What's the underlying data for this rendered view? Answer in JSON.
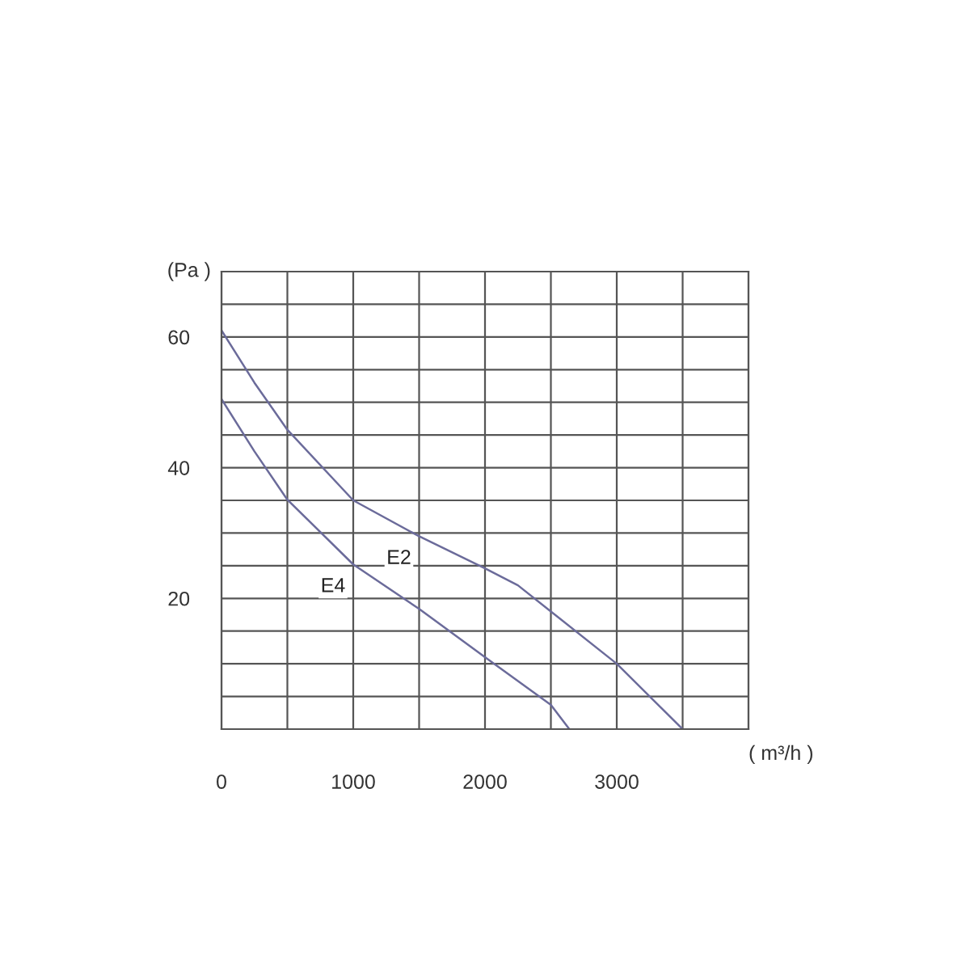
{
  "chart_data": {
    "type": "line",
    "xlabel": "( m³/h )",
    "ylabel": "(Pa )",
    "xlim": [
      0,
      4000
    ],
    "ylim": [
      0,
      70
    ],
    "xticks": [
      {
        "value": 0,
        "label": "0"
      },
      {
        "value": 500,
        "label": null
      },
      1000,
      {
        "value": 1500,
        "label": null
      },
      2000,
      {
        "value": 2500,
        "label": null
      },
      3000,
      {
        "value": 3500,
        "label": null
      },
      {
        "value": 4000,
        "label": null
      }
    ],
    "yticks": [
      {
        "value": 0,
        "label": null
      },
      {
        "value": 5,
        "label": null
      },
      {
        "value": 10,
        "label": null
      },
      {
        "value": 15,
        "label": null
      },
      20,
      {
        "value": 25,
        "label": null
      },
      {
        "value": 30,
        "label": null
      },
      {
        "value": 35,
        "label": null
      },
      40,
      {
        "value": 45,
        "label": null
      },
      {
        "value": 50,
        "label": null
      },
      {
        "value": 55,
        "label": null
      },
      60,
      {
        "value": 65,
        "label": null
      },
      {
        "value": 70,
        "label": null
      }
    ],
    "grid": true,
    "marker": "none",
    "line_style": "solid",
    "series": [
      {
        "name": "E2",
        "color": "#6b6b9a",
        "x": [
          0,
          250,
          500,
          1000,
          1500,
          2000,
          2250,
          2500,
          3000,
          3250,
          3500
        ],
        "values": [
          61,
          53,
          45.8,
          35,
          29.5,
          24.6,
          22,
          18,
          10,
          5,
          0
        ]
      },
      {
        "name": "E4",
        "color": "#6b6b9a",
        "x": [
          0,
          250,
          500,
          1000,
          1500,
          2000,
          2500,
          2640
        ],
        "values": [
          50.5,
          42.5,
          35.1,
          25.2,
          18.4,
          11,
          3.7,
          0
        ]
      }
    ]
  }
}
